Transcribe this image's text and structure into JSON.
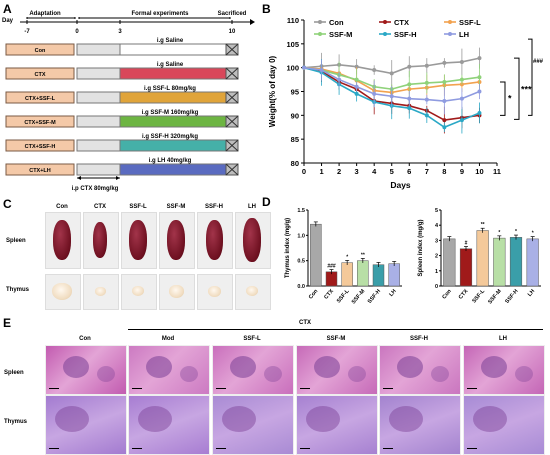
{
  "panels": {
    "a": "A",
    "b": "B",
    "c": "C",
    "d": "D",
    "e": "E"
  },
  "timeline": {
    "day_label": "Day",
    "phases": [
      "Adaptation",
      "Formal experiments",
      "Sacrificed"
    ],
    "days": [
      "-7",
      "0",
      "3",
      "10"
    ],
    "groups": [
      {
        "name": "Con",
        "treatment": "i.g Saline",
        "color": "#ffffff"
      },
      {
        "name": "CTX",
        "treatment": "i.g Saline",
        "color": "#d9475a"
      },
      {
        "name": "CTX+SSF-L",
        "treatment": "i.g SSF-L 80mg/kg",
        "color": "#e0a43a"
      },
      {
        "name": "CTX+SSF-M",
        "treatment": "i.g SSF-M 160mg/kg",
        "color": "#6db542"
      },
      {
        "name": "CTX+SSF-H",
        "treatment": "i.g SSF-H 320mg/kg",
        "color": "#45b0a8"
      },
      {
        "name": "CTX+LH",
        "treatment": "i.g LH 40mg/kg",
        "color": "#5a6bc0"
      }
    ],
    "ctx_note": "i.p CTX 80mg/kg"
  },
  "chart_data": [
    {
      "type": "line",
      "panel": "B",
      "xlabel": "Days",
      "ylabel": "Weight(% of day 0)",
      "xlim": [
        0,
        11
      ],
      "ylim": [
        80,
        110
      ],
      "x": [
        0,
        1,
        2,
        3,
        4,
        5,
        6,
        7,
        8,
        9,
        10
      ],
      "xticks": [
        "0",
        "1",
        "2",
        "3",
        "4",
        "5",
        "6",
        "7",
        "8",
        "9",
        "10",
        "11"
      ],
      "yticks": [
        "80",
        "85",
        "90",
        "95",
        "100",
        "105",
        "110"
      ],
      "series": [
        {
          "name": "Con",
          "color": "#9a9a9a",
          "values": [
            100,
            100.3,
            100.6,
            100.2,
            99.5,
            98.8,
            100.2,
            100.4,
            101,
            101.2,
            102
          ]
        },
        {
          "name": "CTX",
          "color": "#a01a1a",
          "values": [
            100,
            99.2,
            97,
            95.5,
            93,
            92.5,
            92,
            91,
            89,
            89.5,
            90
          ]
        },
        {
          "name": "SSF-L",
          "color": "#f2a24e",
          "values": [
            100,
            99.7,
            98.8,
            97.3,
            95.2,
            94.8,
            95.5,
            95.8,
            96.3,
            96.5,
            97
          ]
        },
        {
          "name": "SSF-M",
          "color": "#8fd27a",
          "values": [
            100,
            99.5,
            98.5,
            97.5,
            96,
            95.5,
            96.5,
            96.8,
            97,
            97.5,
            98
          ]
        },
        {
          "name": "SSF-H",
          "color": "#2aa8c6",
          "values": [
            100,
            99,
            96.5,
            94.5,
            92.8,
            92,
            91.5,
            90,
            87.5,
            89,
            90.5
          ]
        },
        {
          "name": "LH",
          "color": "#8f9be0",
          "values": [
            100,
            99.5,
            97.5,
            96,
            94.5,
            94,
            93.5,
            93.3,
            93,
            93.5,
            95
          ]
        }
      ],
      "significance": [
        "*",
        "***",
        "###"
      ]
    },
    {
      "type": "bar",
      "panel": "D-left",
      "ylabel": "Thymus index (mg/g)",
      "categories": [
        "Con",
        "CTX",
        "SSF-L",
        "SSF-M",
        "SSF-H",
        "LH"
      ],
      "values": [
        1.22,
        0.28,
        0.46,
        0.5,
        0.42,
        0.44
      ],
      "colors": [
        "#a8a8a8",
        "#a01a1a",
        "#f4c99a",
        "#b8dfa6",
        "#3a9ea9",
        "#a9b0e6"
      ],
      "ylim": [
        0,
        1.5
      ],
      "yticks": [
        "0.0",
        "0.5",
        "1.0",
        "1.5"
      ],
      "annotations": [
        "",
        "###",
        "*",
        "**",
        "",
        ""
      ]
    },
    {
      "type": "bar",
      "panel": "D-right",
      "ylabel": "Spleen index (mg/g)",
      "categories": [
        "Con",
        "CTX",
        "SSF-L",
        "SSF-M",
        "SSF-H",
        "LH"
      ],
      "values": [
        3.1,
        2.45,
        3.65,
        3.15,
        3.2,
        3.1
      ],
      "colors": [
        "#a8a8a8",
        "#a01a1a",
        "#f4c99a",
        "#b8dfa6",
        "#3a9ea9",
        "#a9b0e6"
      ],
      "ylim": [
        0,
        5
      ],
      "yticks": [
        "0",
        "1",
        "2",
        "3",
        "4",
        "5"
      ],
      "annotations": [
        "",
        "#",
        "**",
        "*",
        "*",
        "*"
      ]
    }
  ],
  "organs": {
    "columns": [
      "Con",
      "CTX",
      "SSF-L",
      "SSF-M",
      "SSF-H",
      "LH"
    ],
    "rows": [
      "Spleen",
      "Thymus"
    ]
  },
  "histology": {
    "ctx_header": "CTX",
    "columns": [
      "Con",
      "Mod",
      "SSF-L",
      "SSF-M",
      "SSF-H",
      "LH"
    ],
    "rows": [
      "Spleen",
      "Thymus"
    ]
  }
}
